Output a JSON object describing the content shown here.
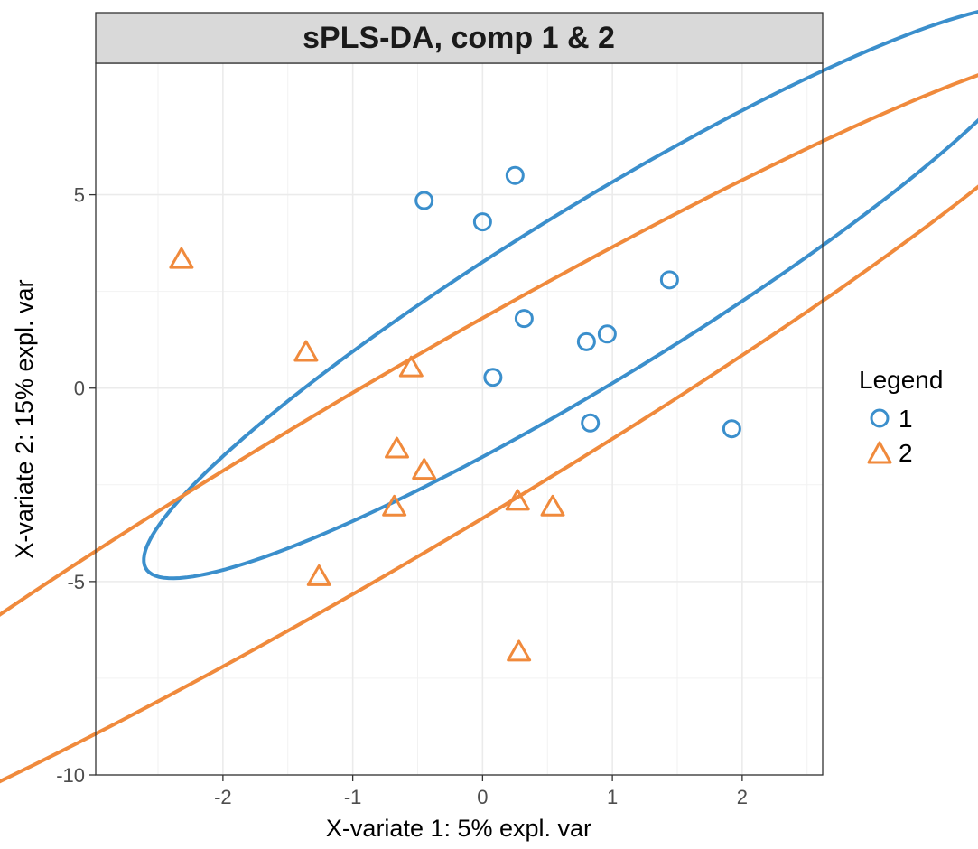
{
  "chart_data": {
    "type": "scatter",
    "title": "sPLS-DA, comp 1 & 2",
    "xlabel": "X-variate 1: 5% expl. var",
    "ylabel": "X-variate 2: 15% expl. var",
    "xlim": [
      -2.98,
      2.62
    ],
    "ylim": [
      -10.0,
      8.4
    ],
    "x_ticks": [
      -2,
      -1,
      0,
      1,
      2
    ],
    "x_tick_labels": [
      "-2",
      "-1",
      "0",
      "1",
      "2"
    ],
    "y_ticks": [
      -10,
      -5,
      0,
      5
    ],
    "y_tick_labels": [
      "-10",
      "-5",
      "0",
      "5"
    ],
    "grid": true,
    "legend": {
      "title": "Legend",
      "position": "right",
      "entries": [
        {
          "label": "1",
          "shape": "circle",
          "color": "#3B8FCC"
        },
        {
          "label": "2",
          "shape": "triangle",
          "color": "#F08A3C"
        }
      ]
    },
    "series": [
      {
        "name": "1",
        "shape": "circle",
        "color": "#3B8FCC",
        "points": [
          {
            "x": -0.45,
            "y": 4.85
          },
          {
            "x": 0.25,
            "y": 5.5
          },
          {
            "x": 0.0,
            "y": 4.3
          },
          {
            "x": 1.44,
            "y": 2.8
          },
          {
            "x": 0.32,
            "y": 1.8
          },
          {
            "x": 0.96,
            "y": 1.4
          },
          {
            "x": 0.8,
            "y": 1.2
          },
          {
            "x": 0.08,
            "y": 0.28
          },
          {
            "x": 0.83,
            "y": -0.9
          },
          {
            "x": 1.92,
            "y": -1.05
          }
        ],
        "ellipse": {
          "cx": 0.88,
          "cy": 2.49,
          "rx": 1.12,
          "ry": 8.11,
          "rotation_deg": -24.3
        }
      },
      {
        "name": "2",
        "shape": "triangle",
        "color": "#F08A3C",
        "points": [
          {
            "x": -2.32,
            "y": 3.35
          },
          {
            "x": -1.36,
            "y": 0.95
          },
          {
            "x": -0.55,
            "y": 0.55
          },
          {
            "x": -0.66,
            "y": -1.55
          },
          {
            "x": -0.45,
            "y": -2.1
          },
          {
            "x": -0.68,
            "y": -3.05
          },
          {
            "x": 0.27,
            "y": -2.9
          },
          {
            "x": 0.54,
            "y": -3.05
          },
          {
            "x": -1.26,
            "y": -4.85
          },
          {
            "x": 0.28,
            "y": -6.8
          }
        ],
        "ellipse": {
          "cx": -0.68,
          "cy": -2.1,
          "rx": 1.17,
          "ry": 12.04,
          "rotation_deg": -26.1
        }
      }
    ]
  }
}
